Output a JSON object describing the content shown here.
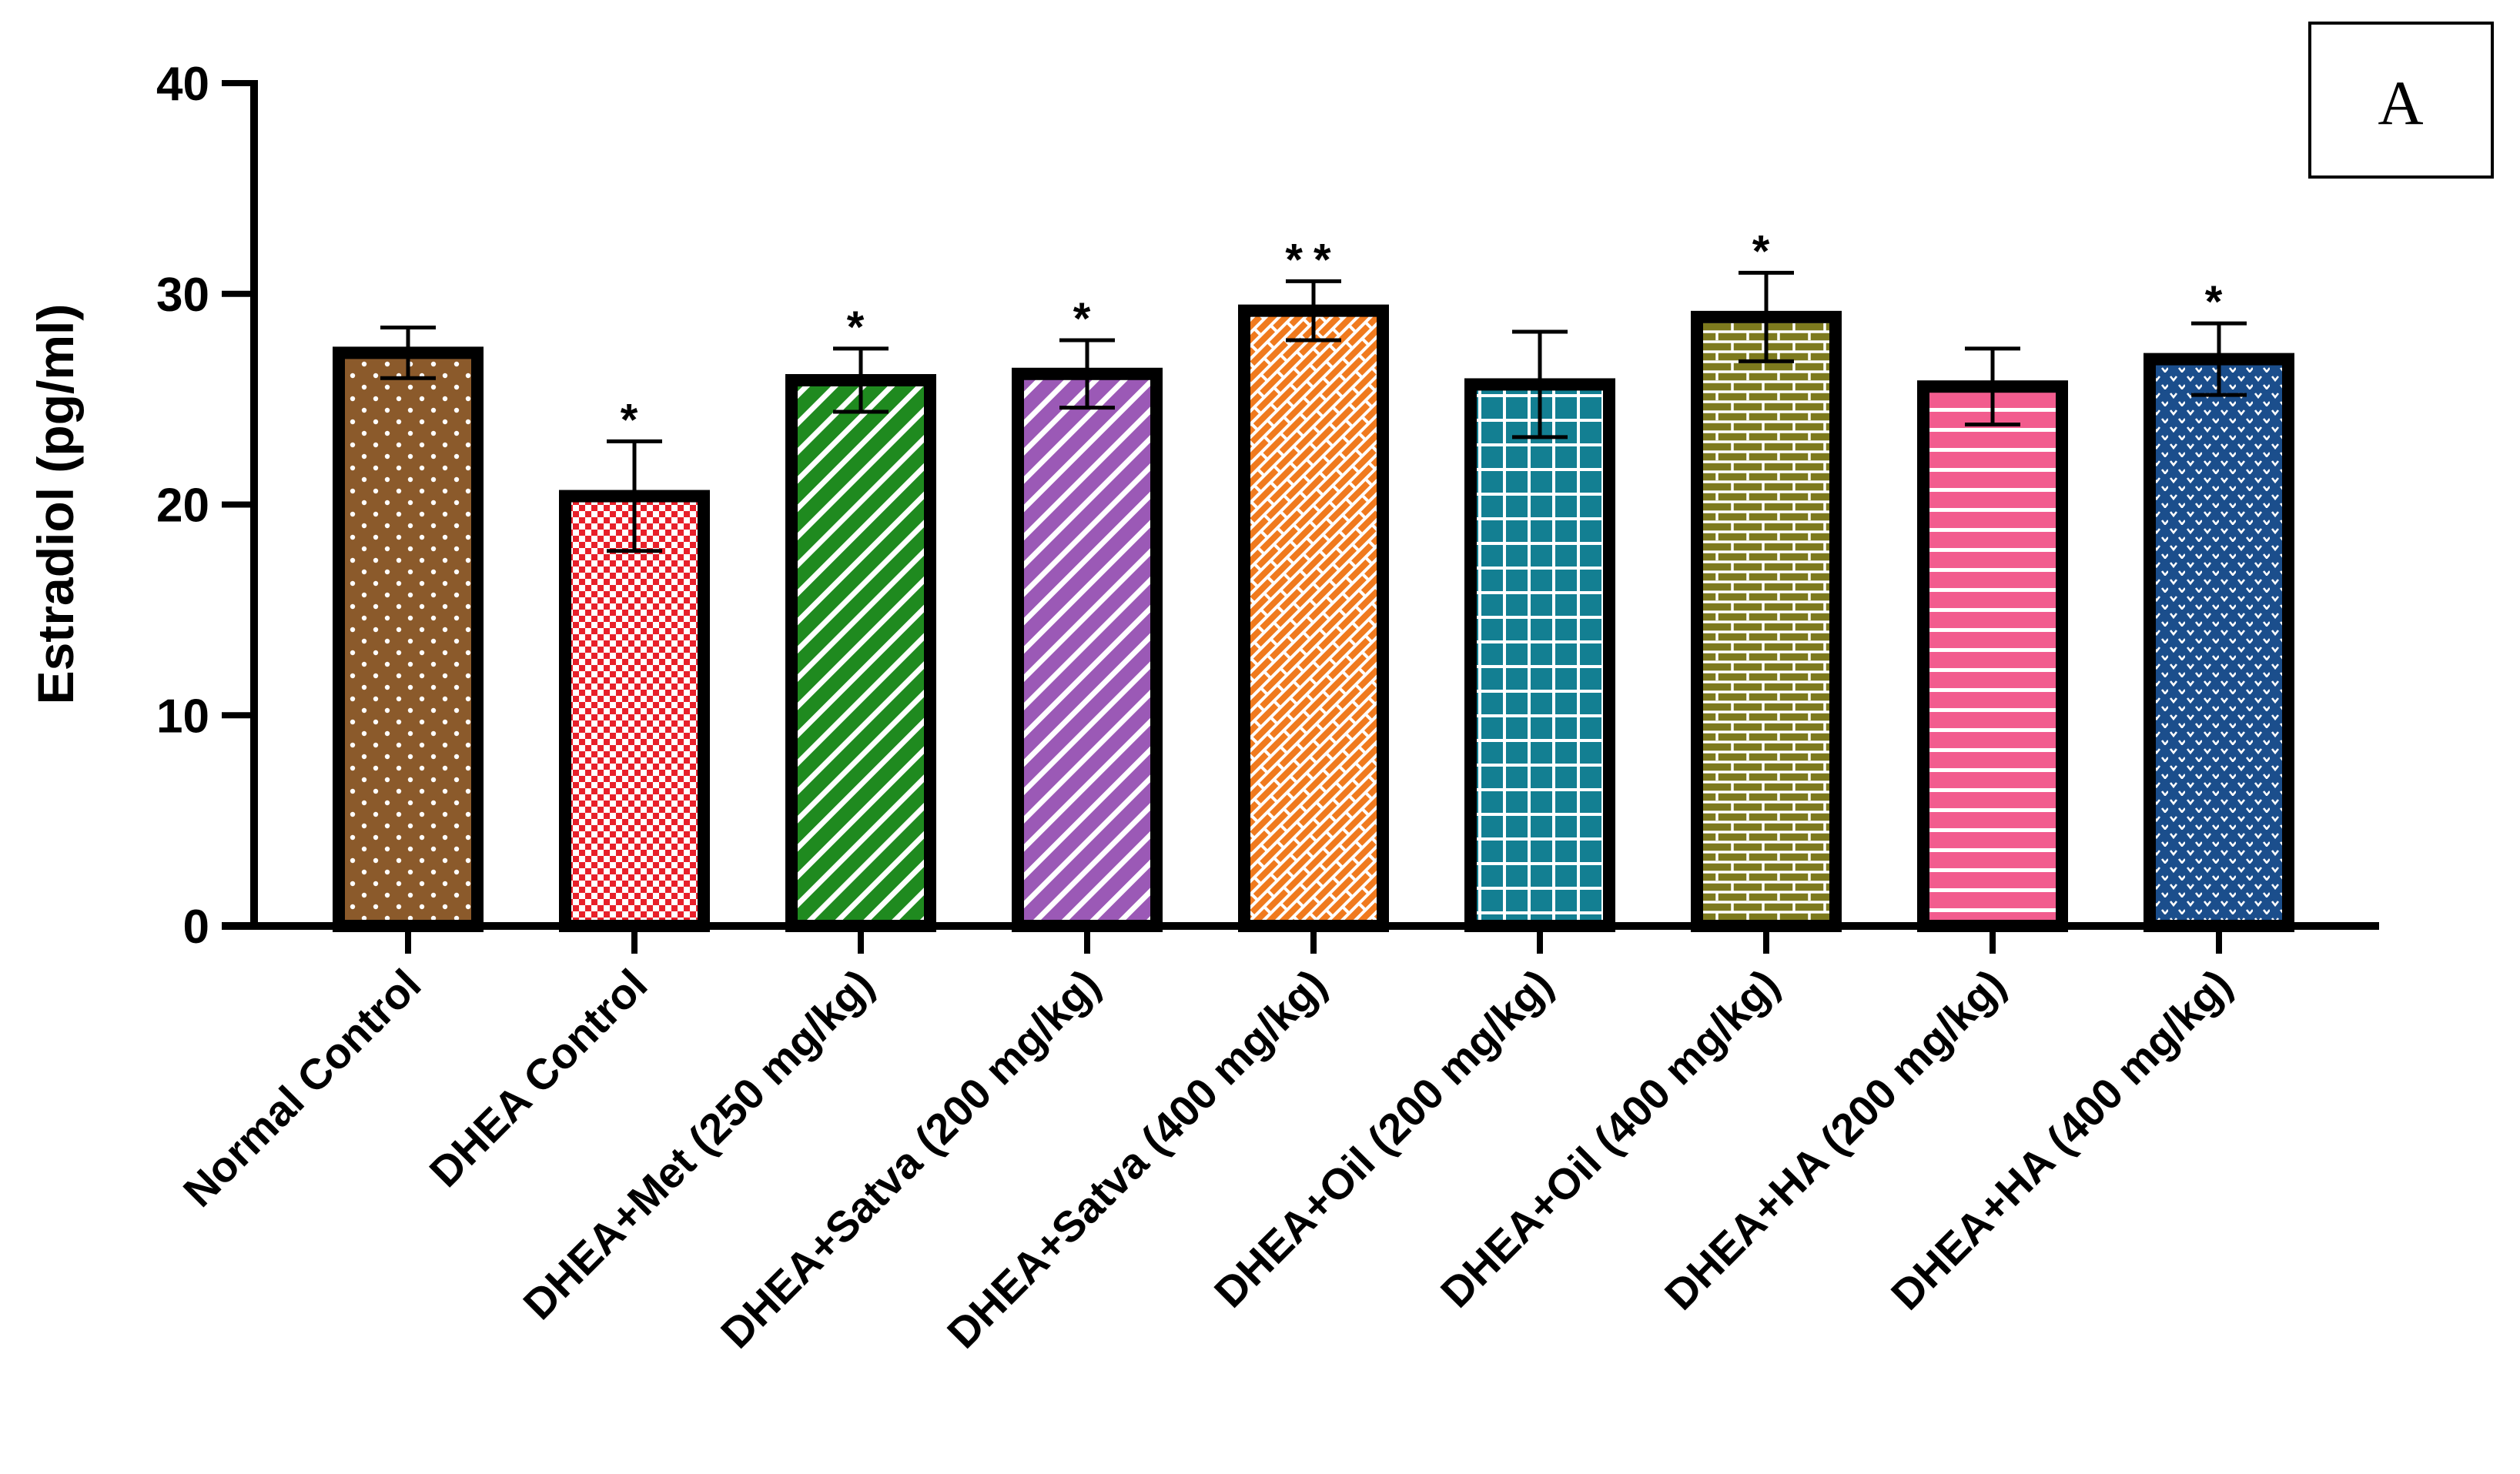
{
  "chart_data": {
    "type": "bar",
    "title": "",
    "panel_label": "A",
    "xlabel": "",
    "ylabel": "Estradiol (pg/ml)",
    "ylim": [
      0,
      40
    ],
    "yticks": [
      0,
      10,
      20,
      30,
      40
    ],
    "grid": false,
    "categories": [
      "Normal Control",
      "DHEA Control",
      "DHEA+Met (250 mg/kg)",
      "DHEA+Satva (200 mg/kg)",
      "DHEA+Satva (400 mg/kg)",
      "DHEA+Oil (200 mg/kg)",
      "DHEA+Oil (400 mg/kg)",
      "DHEA+HA (200 mg/kg)",
      "DHEA+HA (400 mg/kg)"
    ],
    "values": [
      27.2,
      20.4,
      25.9,
      26.2,
      29.2,
      25.7,
      28.9,
      25.6,
      26.9
    ],
    "errors": [
      1.2,
      2.6,
      1.5,
      1.6,
      1.4,
      2.5,
      2.1,
      1.8,
      1.7
    ],
    "significance": [
      "",
      "*",
      "*",
      "*",
      "**",
      "",
      "*",
      "",
      "*"
    ],
    "colors": [
      "#8B5A2B",
      "#E8202A",
      "#1F8A1F",
      "#9B59B6",
      "#F07A1E",
      "#137F92",
      "#7D7A1E",
      "#F25C8E",
      "#1B4E8C"
    ],
    "patterns": [
      "dots",
      "checker",
      "diag",
      "diag",
      "bricks-diag",
      "grid",
      "bricks",
      "hlines",
      "dots-dense"
    ]
  }
}
